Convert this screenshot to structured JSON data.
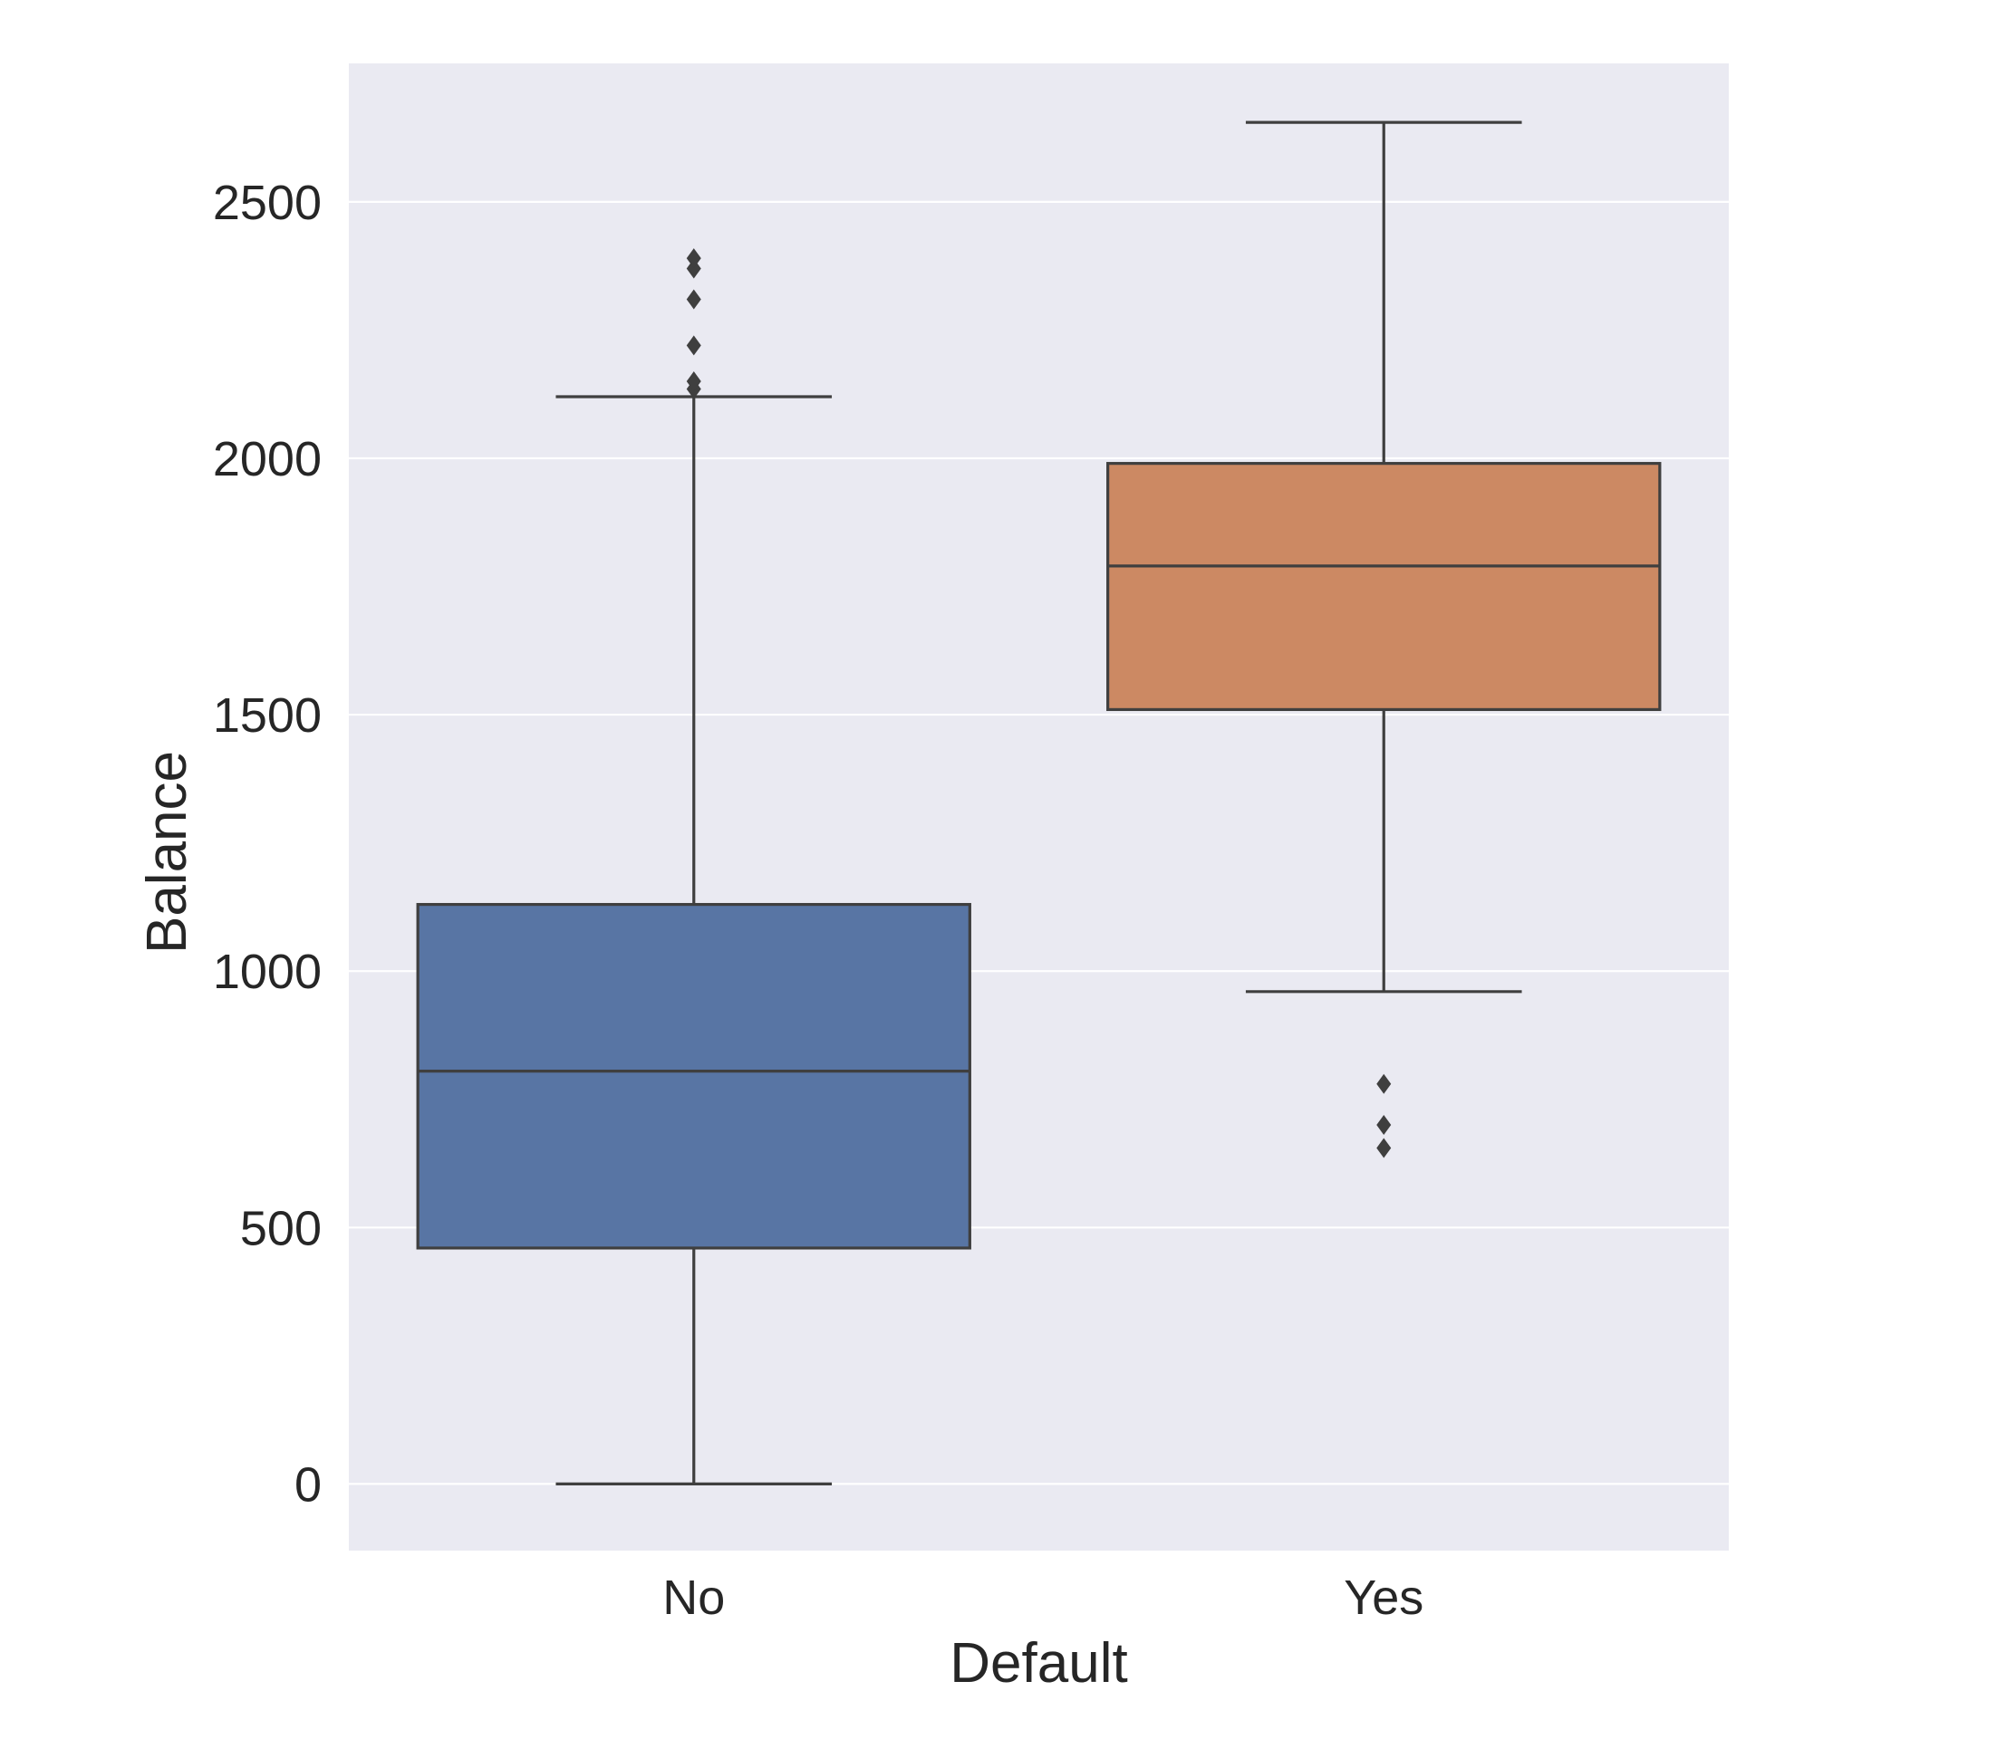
{
  "chart_data": {
    "type": "box",
    "xlabel": "Default",
    "ylabel": "Balance",
    "categories": [
      "No",
      "Yes"
    ],
    "ylim": [
      -130,
      2770
    ],
    "yticks": [
      0,
      500,
      1000,
      1500,
      2000,
      2500
    ],
    "grid": true,
    "legend": "none",
    "boxes": [
      {
        "category": "No",
        "whisker_low": 0,
        "q1": 460,
        "median": 805,
        "q3": 1130,
        "whisker_high": 2120,
        "outliers": [
          2135,
          2150,
          2220,
          2310,
          2370,
          2390
        ],
        "color": "#5875a4"
      },
      {
        "category": "Yes",
        "whisker_low": 960,
        "q1": 1510,
        "median": 1790,
        "q3": 1990,
        "whisker_high": 2655,
        "outliers": [
          655,
          700,
          780
        ],
        "color": "#cc8963"
      }
    ],
    "colors": {
      "plot_background": "#eaeaf2",
      "grid": "#ffffff",
      "box_edge": "#3f3f3f"
    }
  }
}
